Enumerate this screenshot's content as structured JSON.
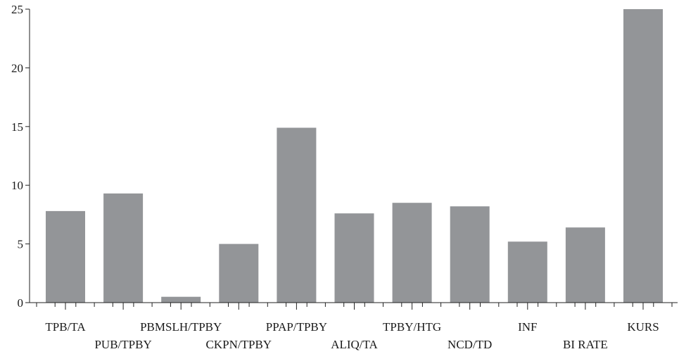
{
  "chart_data": {
    "type": "bar",
    "title": "",
    "xlabel": "",
    "ylabel": "",
    "ylim": [
      0,
      25
    ],
    "yticks": [
      0,
      5,
      10,
      15,
      20,
      25
    ],
    "grid": false,
    "categories": [
      "TPB/TA",
      "PUB/TPBY",
      "PBMSLH/TPBY",
      "CKPN/TPBY",
      "PPAP/TPBY",
      "ALIQ/TA",
      "TPBY/HTG",
      "NCD/TD",
      "INF",
      "BI RATE",
      "KURS"
    ],
    "values": [
      7.8,
      9.3,
      0.5,
      5.0,
      14.9,
      7.6,
      8.5,
      8.2,
      5.2,
      6.4,
      25.0
    ],
    "colors": {
      "bar": "#939598",
      "axis": "#222222",
      "text": "#1a1a1a"
    }
  }
}
